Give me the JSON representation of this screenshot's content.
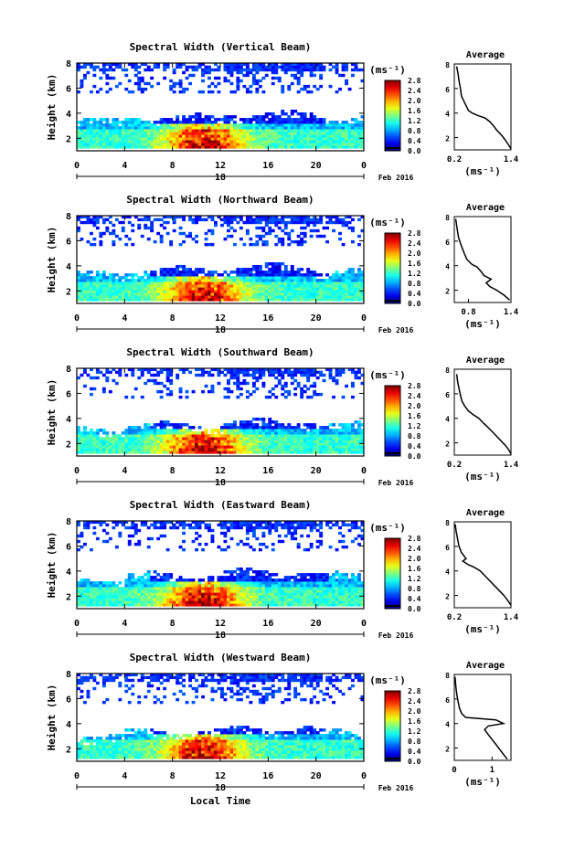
{
  "figure": {
    "x_axis_label": "Local Time",
    "date_label": "Feb 2016",
    "colorbar_unit": "(ms⁻¹)",
    "avg_title": "Average",
    "avg_unit": "(ms⁻¹)",
    "y_label": "Height (km)"
  },
  "chart_data": [
    {
      "type": "heatmap",
      "title": "Spectral Width (Vertical Beam)",
      "ylabel": "Height (km)",
      "xlabel": "Local Time",
      "x_ticks": [
        "0",
        "4",
        "8",
        "12",
        "16",
        "20",
        "0"
      ],
      "day_label": "18",
      "x_range": [
        0,
        24
      ],
      "y_ticks": [
        "2",
        "4",
        "6",
        "8"
      ],
      "y_range": [
        1,
        8
      ],
      "colorbar_ticks": [
        "0.0",
        "0.4",
        "0.8",
        "1.2",
        "1.6",
        "2.0",
        "2.4",
        "2.8"
      ],
      "colorbar_range": [
        0,
        2.8
      ],
      "lower_top_km": 3.6,
      "inset": {
        "title": "Average",
        "x_ticks": [
          "0.2",
          "1.4"
        ],
        "x_range": [
          0.2,
          1.4
        ],
        "y_ticks": [
          "2",
          "4",
          "6",
          "8"
        ],
        "y_range": [
          1,
          8
        ],
        "profile": [
          [
            0.25,
            7.8
          ],
          [
            0.28,
            7.2
          ],
          [
            0.3,
            6.6
          ],
          [
            0.33,
            6.0
          ],
          [
            0.35,
            5.4
          ],
          [
            0.4,
            5.0
          ],
          [
            0.45,
            4.6
          ],
          [
            0.5,
            4.2
          ],
          [
            0.58,
            4.0
          ],
          [
            0.7,
            3.8
          ],
          [
            0.85,
            3.6
          ],
          [
            0.95,
            3.3
          ],
          [
            1.02,
            3.0
          ],
          [
            1.1,
            2.6
          ],
          [
            1.2,
            2.2
          ],
          [
            1.28,
            1.8
          ],
          [
            1.35,
            1.4
          ],
          [
            1.4,
            1.1
          ]
        ]
      }
    },
    {
      "type": "heatmap",
      "title": "Spectral Width (Northward Beam)",
      "ylabel": "Height (km)",
      "xlabel": "Local Time",
      "x_ticks": [
        "0",
        "4",
        "8",
        "12",
        "16",
        "20",
        "0"
      ],
      "day_label": "18",
      "x_range": [
        0,
        24
      ],
      "y_ticks": [
        "2",
        "4",
        "6",
        "8"
      ],
      "y_range": [
        1,
        8
      ],
      "colorbar_ticks": [
        "0.0",
        "0.4",
        "0.8",
        "1.2",
        "1.6",
        "2.0",
        "2.4",
        "2.8"
      ],
      "colorbar_range": [
        0,
        2.8
      ],
      "lower_top_km": 3.6,
      "inset": {
        "title": "Average",
        "x_ticks": [
          "0.8",
          "1.4"
        ],
        "x_range": [
          0.6,
          1.4
        ],
        "y_ticks": [
          "2",
          "4",
          "6",
          "8"
        ],
        "y_range": [
          1,
          8
        ],
        "profile": [
          [
            0.62,
            7.8
          ],
          [
            0.64,
            7.0
          ],
          [
            0.66,
            6.3
          ],
          [
            0.7,
            5.6
          ],
          [
            0.74,
            5.0
          ],
          [
            0.78,
            4.5
          ],
          [
            0.85,
            4.1
          ],
          [
            0.92,
            3.9
          ],
          [
            0.98,
            3.5
          ],
          [
            1.02,
            3.2
          ],
          [
            1.12,
            2.9
          ],
          [
            1.05,
            2.6
          ],
          [
            1.1,
            2.3
          ],
          [
            1.2,
            2.0
          ],
          [
            1.3,
            1.6
          ],
          [
            1.38,
            1.2
          ]
        ]
      }
    },
    {
      "type": "heatmap",
      "title": "Spectral Width (Southward Beam)",
      "ylabel": "Height (km)",
      "xlabel": "Local Time",
      "x_ticks": [
        "0",
        "4",
        "8",
        "12",
        "16",
        "20",
        "0"
      ],
      "day_label": "18",
      "x_range": [
        0,
        24
      ],
      "y_ticks": [
        "2",
        "4",
        "6",
        "8"
      ],
      "y_range": [
        1,
        8
      ],
      "colorbar_ticks": [
        "0.0",
        "0.4",
        "0.8",
        "1.2",
        "1.6",
        "2.0",
        "2.4",
        "2.8"
      ],
      "colorbar_range": [
        0,
        2.8
      ],
      "lower_top_km": 3.4,
      "inset": {
        "title": "Average",
        "x_ticks": [
          "0.2",
          "1.4"
        ],
        "x_range": [
          0.2,
          1.4
        ],
        "y_ticks": [
          "2",
          "4",
          "6",
          "8"
        ],
        "y_range": [
          1,
          8
        ],
        "profile": [
          [
            0.25,
            7.6
          ],
          [
            0.27,
            7.0
          ],
          [
            0.3,
            6.4
          ],
          [
            0.33,
            5.9
          ],
          [
            0.36,
            5.4
          ],
          [
            0.42,
            5.0
          ],
          [
            0.5,
            4.6
          ],
          [
            0.6,
            4.3
          ],
          [
            0.72,
            4.0
          ],
          [
            0.82,
            3.6
          ],
          [
            0.9,
            3.3
          ],
          [
            0.98,
            3.0
          ],
          [
            1.08,
            2.6
          ],
          [
            1.18,
            2.2
          ],
          [
            1.28,
            1.8
          ],
          [
            1.36,
            1.4
          ],
          [
            1.4,
            1.1
          ]
        ]
      }
    },
    {
      "type": "heatmap",
      "title": "Spectral Width (Eastward Beam)",
      "ylabel": "Height (km)",
      "xlabel": "Local Time",
      "x_ticks": [
        "0",
        "4",
        "8",
        "12",
        "16",
        "20",
        "0"
      ],
      "day_label": "18",
      "x_range": [
        0,
        24
      ],
      "y_ticks": [
        "2",
        "4",
        "6",
        "8"
      ],
      "y_range": [
        1,
        8
      ],
      "colorbar_ticks": [
        "0.0",
        "0.4",
        "0.8",
        "1.2",
        "1.6",
        "2.0",
        "2.4",
        "2.8"
      ],
      "colorbar_range": [
        0,
        2.8
      ],
      "lower_top_km": 3.6,
      "inset": {
        "title": "Average",
        "x_ticks": [
          "0.2",
          "1.4"
        ],
        "x_range": [
          0.2,
          1.4
        ],
        "y_ticks": [
          "2",
          "4",
          "6",
          "8"
        ],
        "y_range": [
          1,
          8
        ],
        "profile": [
          [
            0.22,
            7.8
          ],
          [
            0.24,
            7.2
          ],
          [
            0.27,
            6.6
          ],
          [
            0.3,
            6.0
          ],
          [
            0.35,
            5.5
          ],
          [
            0.45,
            5.0
          ],
          [
            0.38,
            4.8
          ],
          [
            0.5,
            4.5
          ],
          [
            0.62,
            4.3
          ],
          [
            0.75,
            4.0
          ],
          [
            0.85,
            3.6
          ],
          [
            0.95,
            3.2
          ],
          [
            1.05,
            2.8
          ],
          [
            1.15,
            2.4
          ],
          [
            1.25,
            2.0
          ],
          [
            1.33,
            1.6
          ],
          [
            1.4,
            1.2
          ]
        ]
      }
    },
    {
      "type": "heatmap",
      "title": "Spectral Width (Westward Beam)",
      "ylabel": "Height (km)",
      "xlabel": "Local Time",
      "x_ticks": [
        "0",
        "4",
        "8",
        "12",
        "16",
        "20",
        "0"
      ],
      "day_label": "18",
      "x_range": [
        0,
        24
      ],
      "y_ticks": [
        "2",
        "4",
        "6",
        "8"
      ],
      "y_range": [
        1,
        8
      ],
      "colorbar_ticks": [
        "0.0",
        "0.4",
        "0.8",
        "1.2",
        "1.6",
        "2.0",
        "2.4",
        "2.8"
      ],
      "colorbar_range": [
        0,
        2.8
      ],
      "lower_top_km": 3.3,
      "inset": {
        "title": "Average",
        "x_ticks": [
          "0",
          "1"
        ],
        "x_range": [
          0,
          1.5
        ],
        "y_ticks": [
          "2",
          "4",
          "6",
          "8"
        ],
        "y_range": [
          1,
          8
        ],
        "profile": [
          [
            0.02,
            7.8
          ],
          [
            0.04,
            7.0
          ],
          [
            0.07,
            6.3
          ],
          [
            0.1,
            5.8
          ],
          [
            0.14,
            5.2
          ],
          [
            0.2,
            4.8
          ],
          [
            0.3,
            4.5
          ],
          [
            1.1,
            4.3
          ],
          [
            1.3,
            4.0
          ],
          [
            0.9,
            3.8
          ],
          [
            0.8,
            3.5
          ],
          [
            0.9,
            3.1
          ],
          [
            1.0,
            2.7
          ],
          [
            1.1,
            2.3
          ],
          [
            1.2,
            1.9
          ],
          [
            1.3,
            1.5
          ],
          [
            1.4,
            1.1
          ]
        ]
      }
    }
  ]
}
